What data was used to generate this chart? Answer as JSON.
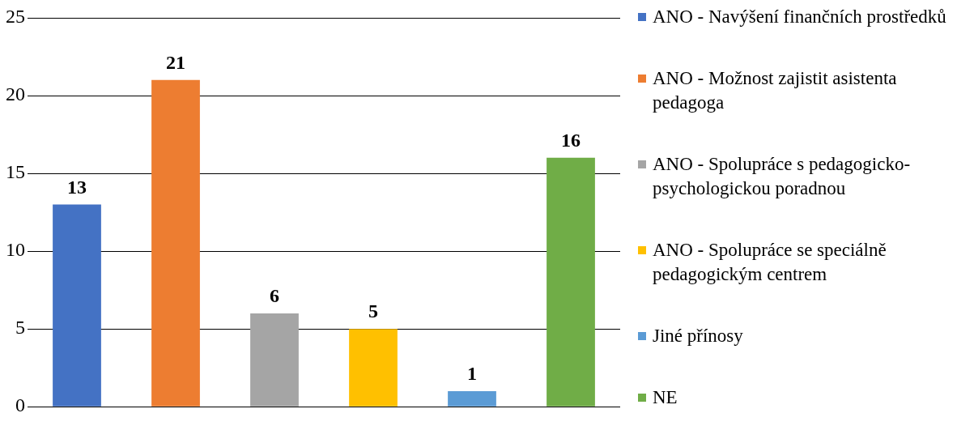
{
  "chart_data": {
    "type": "bar",
    "categories": [
      null
    ],
    "series": [
      {
        "name": "ANO - Navýšení finančních prostředků",
        "color": "#4472c4",
        "values": [
          13
        ]
      },
      {
        "name": "ANO - Možnost zajistit asistenta pedagoga",
        "color": "#ed7d31",
        "values": [
          21
        ]
      },
      {
        "name": "ANO - Spolupráce s pedagogicko-psychologickou poradnou",
        "color": "#a5a5a5",
        "values": [
          6
        ]
      },
      {
        "name": "ANO - Spolupráce se speciálně pedagogickým centrem",
        "color": "#ffc000",
        "values": [
          5
        ]
      },
      {
        "name": "Jiné přínosy",
        "color": "#5b9bd5",
        "values": [
          1
        ]
      },
      {
        "name": "NE",
        "color": "#70ad47",
        "values": [
          16
        ]
      }
    ],
    "ylim": [
      0,
      25
    ],
    "yticks": [
      0,
      5,
      10,
      15,
      20,
      25
    ],
    "grid": "y",
    "legend": "right",
    "data_labels": true
  }
}
